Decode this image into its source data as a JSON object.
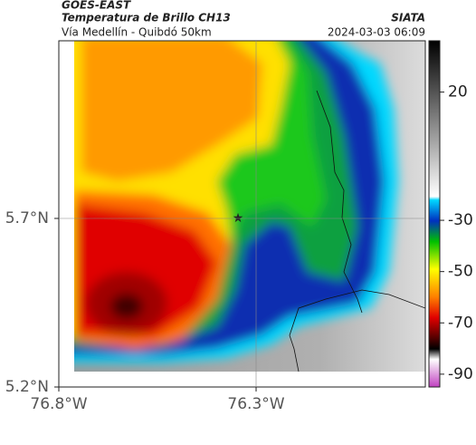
{
  "header": {
    "title": "GOES-EAST",
    "subtitle": "Temperatura de Brillo CH13",
    "route": "Vía Medellín - Quibdó 50km",
    "source": "SIATA",
    "timestamp": "2024-03-03 06:09"
  },
  "map": {
    "lat_ticks": [
      "5.7°N",
      "5.2°N"
    ],
    "lon_ticks": [
      "76.8°W",
      "76.3°W"
    ]
  },
  "colorbar": {
    "lim": [
      -95,
      40
    ],
    "ticks": [
      20,
      -30,
      -50,
      -70,
      -90
    ]
  }
}
